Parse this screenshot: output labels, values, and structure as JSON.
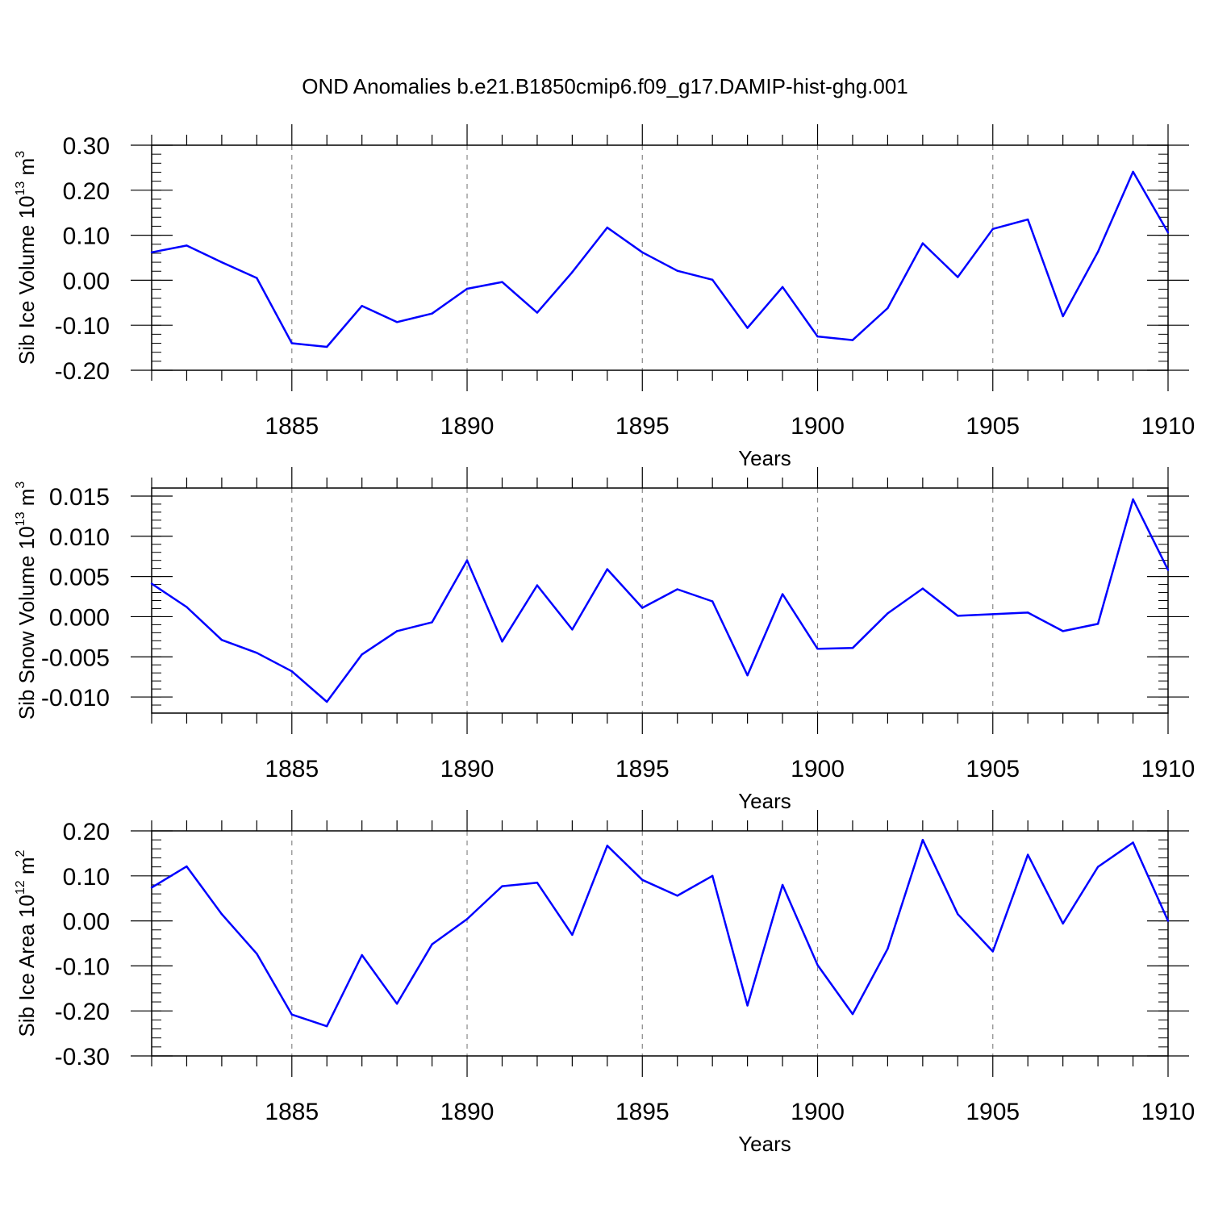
{
  "title": "OND Anomalies b.e21.B1850cmip6.f09_g17.DAMIP-hist-ghg.001",
  "chart_data": [
    {
      "type": "line",
      "title": "OND Anomalies b.e21.B1850cmip6.f09_g17.DAMIP-hist-ghg.001",
      "xlabel": "Years",
      "ylabel": "Sib Ice Volume 10",
      "ylabel_sup": "13",
      "ylabel_unit": " m",
      "ylabel_unit_sup": "3",
      "xlim": [
        1881,
        1910
      ],
      "ylim": [
        -0.2,
        0.3
      ],
      "x_ticks": [
        1885,
        1890,
        1895,
        1900,
        1905,
        1910
      ],
      "x_tick_labels": [
        "1885",
        "1890",
        "1895",
        "1900",
        "1905",
        "1910"
      ],
      "y_ticks": [
        -0.2,
        -0.1,
        0.0,
        0.1,
        0.2,
        0.3
      ],
      "y_tick_labels": [
        "-0.20",
        "-0.10",
        "0.00",
        "0.10",
        "0.20",
        "0.30"
      ],
      "y_minor_step": 0.02,
      "grid": "dashed vertical at major x ticks",
      "series": [
        {
          "name": "Sib Ice Volume",
          "color": "#0000ff",
          "x": [
            1881,
            1882,
            1883,
            1884,
            1885,
            1886,
            1887,
            1888,
            1889,
            1890,
            1891,
            1892,
            1893,
            1894,
            1895,
            1896,
            1897,
            1898,
            1899,
            1900,
            1901,
            1902,
            1903,
            1904,
            1905,
            1906,
            1907,
            1908,
            1909,
            1910
          ],
          "values": [
            0.062,
            0.077,
            0.04,
            0.005,
            -0.14,
            -0.148,
            -0.057,
            -0.093,
            -0.074,
            -0.019,
            -0.004,
            -0.072,
            0.018,
            0.117,
            0.062,
            0.021,
            0.001,
            -0.106,
            -0.015,
            -0.125,
            -0.133,
            -0.062,
            0.082,
            0.007,
            0.114,
            0.135,
            -0.08,
            0.063,
            0.241,
            0.106
          ]
        }
      ]
    },
    {
      "type": "line",
      "xlabel": "Years",
      "ylabel": "Sib Snow Volume 10",
      "ylabel_sup": "13",
      "ylabel_unit": " m",
      "ylabel_unit_sup": "3",
      "xlim": [
        1881,
        1910
      ],
      "ylim": [
        -0.012,
        0.016
      ],
      "x_ticks": [
        1885,
        1890,
        1895,
        1900,
        1905,
        1910
      ],
      "x_tick_labels": [
        "1885",
        "1890",
        "1895",
        "1900",
        "1905",
        "1910"
      ],
      "y_ticks": [
        -0.01,
        -0.005,
        0.0,
        0.005,
        0.01,
        0.015
      ],
      "y_tick_labels": [
        "-0.010",
        "-0.005",
        "0.000",
        "0.005",
        "0.010",
        "0.015"
      ],
      "y_minor_step": 0.001,
      "grid": "dashed vertical at major x ticks",
      "series": [
        {
          "name": "Sib Snow Volume",
          "color": "#0000ff",
          "x": [
            1881,
            1882,
            1883,
            1884,
            1885,
            1886,
            1887,
            1888,
            1889,
            1890,
            1891,
            1892,
            1893,
            1894,
            1895,
            1896,
            1897,
            1898,
            1899,
            1900,
            1901,
            1902,
            1903,
            1904,
            1905,
            1906,
            1907,
            1908,
            1909,
            1910
          ],
          "values": [
            0.0041,
            0.0012,
            -0.0029,
            -0.0045,
            -0.0068,
            -0.0106,
            -0.0047,
            -0.0018,
            -0.0007,
            0.007,
            -0.0031,
            0.0039,
            -0.0016,
            0.0059,
            0.0011,
            0.0034,
            0.0019,
            -0.0073,
            0.0028,
            -0.004,
            -0.0039,
            0.0004,
            0.0035,
            0.0001,
            0.0003,
            0.0005,
            -0.0018,
            -0.0009,
            0.0146,
            0.0058
          ]
        }
      ]
    },
    {
      "type": "line",
      "xlabel": "Years",
      "ylabel": "Sib Ice Area 10",
      "ylabel_sup": "12",
      "ylabel_unit": " m",
      "ylabel_unit_sup": "2",
      "xlim": [
        1881,
        1910
      ],
      "ylim": [
        -0.3,
        0.2
      ],
      "x_ticks": [
        1885,
        1890,
        1895,
        1900,
        1905,
        1910
      ],
      "x_tick_labels": [
        "1885",
        "1890",
        "1895",
        "1900",
        "1905",
        "1910"
      ],
      "y_ticks": [
        -0.3,
        -0.2,
        -0.1,
        0.0,
        0.1,
        0.2
      ],
      "y_tick_labels": [
        "-0.30",
        "-0.20",
        "-0.10",
        "0.00",
        "0.10",
        "0.20"
      ],
      "y_minor_step": 0.02,
      "grid": "dashed vertical at major x ticks",
      "series": [
        {
          "name": "Sib Ice Area",
          "color": "#0000ff",
          "x": [
            1881,
            1882,
            1883,
            1884,
            1885,
            1886,
            1887,
            1888,
            1889,
            1890,
            1891,
            1892,
            1893,
            1894,
            1895,
            1896,
            1897,
            1898,
            1899,
            1900,
            1901,
            1902,
            1903,
            1904,
            1905,
            1906,
            1907,
            1908,
            1909,
            1910
          ],
          "values": [
            0.074,
            0.121,
            0.015,
            -0.073,
            -0.208,
            -0.234,
            -0.076,
            -0.184,
            -0.052,
            0.004,
            0.077,
            0.085,
            -0.031,
            0.167,
            0.091,
            0.056,
            0.1,
            -0.188,
            0.08,
            -0.098,
            -0.207,
            -0.062,
            0.18,
            0.015,
            -0.068,
            0.147,
            -0.006,
            0.12,
            0.174,
            0.0
          ]
        }
      ]
    }
  ]
}
